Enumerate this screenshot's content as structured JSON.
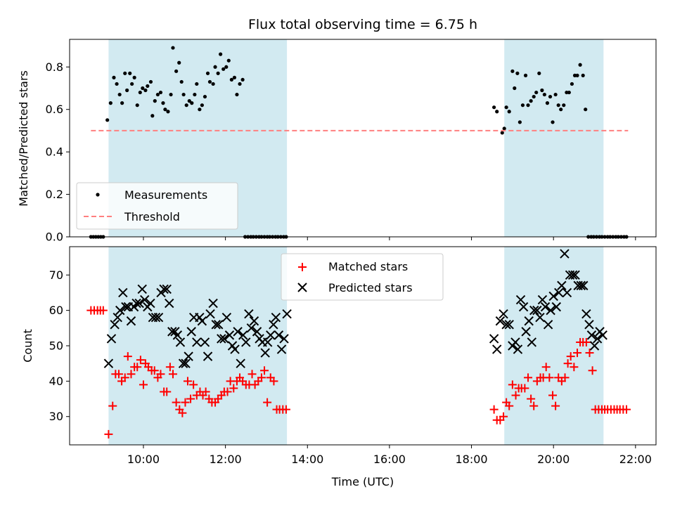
{
  "chart_data": {
    "type": "scatter",
    "title": "Flux total observing time = 6.75 h",
    "xlabel": "Time (UTC)",
    "x_unit": "hours UTC",
    "xlim": [
      8.2,
      22.5
    ],
    "xticks": [
      10,
      12,
      14,
      16,
      18,
      20,
      22
    ],
    "xtick_labels": [
      "10:00",
      "12:00",
      "14:00",
      "16:00",
      "18:00",
      "20:00",
      "22:00"
    ],
    "colors": {
      "shade": "#add8e6",
      "measurement": "#000000",
      "threshold": "#ff7f7f",
      "matched": "#ff0000",
      "predicted": "#000000"
    },
    "panels": [
      {
        "id": "ratio",
        "ylabel": "Matched/Predicted stars",
        "ylim": [
          0,
          0.93
        ],
        "yticks": [
          0,
          0.2,
          0.4,
          0.6,
          0.8
        ],
        "ytick_labels": [
          "0.0",
          "0.2",
          "0.4",
          "0.6",
          "0.8"
        ],
        "shaded_intervals": [
          [
            9.15,
            13.5
          ],
          [
            18.8,
            21.22
          ]
        ],
        "legend": {
          "position": "lower left",
          "entries": [
            "Measurements",
            "Threshold"
          ]
        },
        "series": [
          {
            "name": "Measurements",
            "marker": "dot",
            "x": [
              8.72,
              8.78,
              8.84,
              8.9,
              8.96,
              9.02,
              9.12,
              9.2,
              9.28,
              9.35,
              9.42,
              9.48,
              9.55,
              9.6,
              9.67,
              9.72,
              9.78,
              9.85,
              9.92,
              9.98,
              10.05,
              10.1,
              10.18,
              10.22,
              10.28,
              10.35,
              10.42,
              10.48,
              10.53,
              10.6,
              10.67,
              10.72,
              10.8,
              10.87,
              10.93,
              10.98,
              11.05,
              11.12,
              11.18,
              11.25,
              11.3,
              11.37,
              11.43,
              11.5,
              11.57,
              11.62,
              11.7,
              11.75,
              11.82,
              11.88,
              11.95,
              12.02,
              12.08,
              12.15,
              12.22,
              12.28,
              12.35,
              12.42,
              12.48,
              12.55,
              12.62,
              12.68,
              12.75,
              12.82,
              12.88,
              12.95,
              13.02,
              13.08,
              13.15,
              13.22,
              13.28,
              13.35,
              13.42,
              13.48,
              18.55,
              18.62,
              18.75,
              18.8,
              18.85,
              18.92,
              19.0,
              19.05,
              19.12,
              19.18,
              19.25,
              19.32,
              19.38,
              19.45,
              19.52,
              19.58,
              19.65,
              19.72,
              19.78,
              19.85,
              19.92,
              19.98,
              20.05,
              20.12,
              20.18,
              20.25,
              20.32,
              20.38,
              20.45,
              20.52,
              20.58,
              20.65,
              20.72,
              20.78,
              20.85,
              20.92,
              20.98,
              21.05,
              21.12,
              21.18,
              21.25,
              21.32,
              21.38,
              21.45,
              21.52,
              21.58,
              21.65,
              21.72,
              21.78
            ],
            "y": [
              0,
              0,
              0,
              0,
              0,
              0,
              0.55,
              0.63,
              0.75,
              0.72,
              0.67,
              0.63,
              0.77,
              0.69,
              0.77,
              0.72,
              0.75,
              0.62,
              0.68,
              0.7,
              0.69,
              0.71,
              0.73,
              0.57,
              0.64,
              0.67,
              0.68,
              0.63,
              0.6,
              0.59,
              0.67,
              0.89,
              0.78,
              0.82,
              0.73,
              0.67,
              0.62,
              0.64,
              0.63,
              0.67,
              0.72,
              0.6,
              0.62,
              0.66,
              0.77,
              0.73,
              0.72,
              0.8,
              0.77,
              0.86,
              0.79,
              0.8,
              0.83,
              0.74,
              0.75,
              0.67,
              0.72,
              0.74,
              0,
              0,
              0,
              0,
              0,
              0,
              0,
              0,
              0,
              0,
              0,
              0,
              0,
              0,
              0,
              0,
              0.61,
              0.59,
              0.49,
              0.51,
              0.61,
              0.59,
              0.78,
              0.7,
              0.77,
              0.54,
              0.62,
              0.76,
              0.62,
              0.64,
              0.66,
              0.68,
              0.77,
              0.69,
              0.67,
              0.63,
              0.66,
              0.54,
              0.67,
              0.62,
              0.6,
              0.62,
              0.68,
              0.68,
              0.72,
              0.76,
              0.76,
              0.81,
              0.76,
              0.6,
              0,
              0,
              0,
              0,
              0,
              0,
              0,
              0,
              0,
              0,
              0,
              0,
              0,
              0,
              0
            ],
            "note": ""
          },
          {
            "name": "Threshold",
            "marker": "dashed-line",
            "x": [
              8.72,
              21.82
            ],
            "y": [
              0.5,
              0.5
            ]
          }
        ]
      },
      {
        "id": "counts",
        "ylabel": "Count",
        "ylim": [
          22,
          78
        ],
        "yticks": [
          30,
          40,
          50,
          60,
          70
        ],
        "ytick_labels": [
          "30",
          "40",
          "50",
          "60",
          "70"
        ],
        "shaded_intervals": [
          [
            9.15,
            13.5
          ],
          [
            18.8,
            21.22
          ]
        ],
        "legend": {
          "position": "upper center",
          "entries": [
            "Matched stars",
            "Predicted stars"
          ]
        },
        "series": [
          {
            "name": "Matched stars",
            "marker": "plus",
            "x": [
              8.72,
              8.8,
              8.88,
              8.95,
              9.02,
              9.15,
              9.25,
              9.32,
              9.4,
              9.47,
              9.55,
              9.62,
              9.7,
              9.78,
              9.85,
              9.93,
              10.0,
              10.05,
              10.12,
              10.2,
              10.27,
              10.35,
              10.42,
              10.5,
              10.57,
              10.65,
              10.72,
              10.8,
              10.88,
              10.95,
              11.02,
              11.08,
              11.15,
              11.22,
              11.3,
              11.38,
              11.45,
              11.52,
              11.6,
              11.67,
              11.75,
              11.82,
              11.9,
              11.97,
              12.05,
              12.12,
              12.2,
              12.28,
              12.35,
              12.42,
              12.5,
              12.58,
              12.65,
              12.72,
              12.8,
              12.88,
              12.95,
              13.02,
              13.1,
              13.18,
              13.25,
              13.32,
              13.4,
              13.48,
              18.55,
              18.62,
              18.7,
              18.78,
              18.85,
              18.92,
              19.0,
              19.08,
              19.15,
              19.22,
              19.3,
              19.38,
              19.45,
              19.52,
              19.6,
              19.68,
              19.75,
              19.82,
              19.9,
              19.98,
              20.05,
              20.12,
              20.2,
              20.28,
              20.35,
              20.42,
              20.5,
              20.58,
              20.65,
              20.72,
              20.8,
              20.88,
              20.95,
              21.02,
              21.1,
              21.18,
              21.25,
              21.32,
              21.4,
              21.48,
              21.55,
              21.62,
              21.7,
              21.78
            ],
            "y": [
              60,
              60,
              60,
              60,
              60,
              25,
              33,
              42,
              42,
              40,
              41,
              47,
              42,
              44,
              44,
              46,
              39,
              45,
              44,
              43,
              43,
              41,
              42,
              37,
              37,
              44,
              42,
              34,
              32,
              31,
              34,
              40,
              35,
              39,
              36,
              37,
              36,
              37,
              35,
              34,
              34,
              35,
              36,
              37,
              37,
              40,
              38,
              40,
              41,
              40,
              39,
              39,
              42,
              39,
              40,
              41,
              43,
              34,
              41,
              40,
              32,
              32,
              32,
              32,
              32,
              29,
              29,
              30,
              34,
              33,
              39,
              36,
              38,
              38,
              38,
              41,
              35,
              33,
              40,
              41,
              41,
              44,
              41,
              36,
              33,
              41,
              40,
              41,
              45,
              47,
              44,
              48,
              51,
              51,
              51,
              48,
              43,
              32,
              32,
              32,
              32,
              32,
              32,
              32,
              32,
              32,
              32,
              32
            ],
            "note": ""
          },
          {
            "name": "Predicted stars",
            "marker": "x",
            "x": [
              9.15,
              9.22,
              9.3,
              9.37,
              9.43,
              9.5,
              9.57,
              9.63,
              9.7,
              9.77,
              9.83,
              9.9,
              9.97,
              10.03,
              10.1,
              10.17,
              10.23,
              10.3,
              10.37,
              10.43,
              10.5,
              10.57,
              10.63,
              10.7,
              10.77,
              10.83,
              10.9,
              10.97,
              11.03,
              11.1,
              11.17,
              11.23,
              11.3,
              11.37,
              11.43,
              11.5,
              11.57,
              11.63,
              11.7,
              11.77,
              11.83,
              11.9,
              11.97,
              12.03,
              12.1,
              12.17,
              12.23,
              12.3,
              12.37,
              12.43,
              12.5,
              12.57,
              12.63,
              12.7,
              12.77,
              12.83,
              12.9,
              12.97,
              13.03,
              13.1,
              13.17,
              13.23,
              13.3,
              13.37,
              13.43,
              13.5,
              18.55,
              18.62,
              18.7,
              18.78,
              18.85,
              18.92,
              19.0,
              19.07,
              19.13,
              19.2,
              19.27,
              19.33,
              19.4,
              19.47,
              19.53,
              19.6,
              19.67,
              19.73,
              19.8,
              19.87,
              19.93,
              20.0,
              20.07,
              20.13,
              20.2,
              20.27,
              20.33,
              20.4,
              20.47,
              20.53,
              20.6,
              20.67,
              20.73,
              20.8,
              20.87,
              20.93,
              21.0,
              21.07,
              21.13,
              21.2
            ],
            "y": [
              45,
              52,
              56,
              58,
              60,
              65,
              61,
              61,
              57,
              61,
              62,
              62,
              66,
              63,
              61,
              62,
              58,
              58,
              58,
              65,
              66,
              66,
              62,
              54,
              54,
              53,
              51,
              45,
              45,
              47,
              54,
              58,
              51,
              58,
              57,
              51,
              47,
              59,
              62,
              56,
              56,
              52,
              52,
              58,
              53,
              50,
              49,
              54,
              45,
              53,
              51,
              59,
              55,
              57,
              54,
              52,
              51,
              48,
              51,
              53,
              56,
              58,
              53,
              49,
              52,
              59,
              52,
              49,
              57,
              59,
              56,
              56,
              50,
              51,
              49,
              63,
              61,
              54,
              57,
              51,
              60,
              60,
              58,
              63,
              61,
              56,
              60,
              64,
              61,
              65,
              67,
              76,
              65,
              70,
              70,
              70,
              67,
              67,
              67,
              59,
              56,
              53,
              50,
              52,
              54,
              53
            ],
            "note": ""
          }
        ]
      }
    ]
  }
}
